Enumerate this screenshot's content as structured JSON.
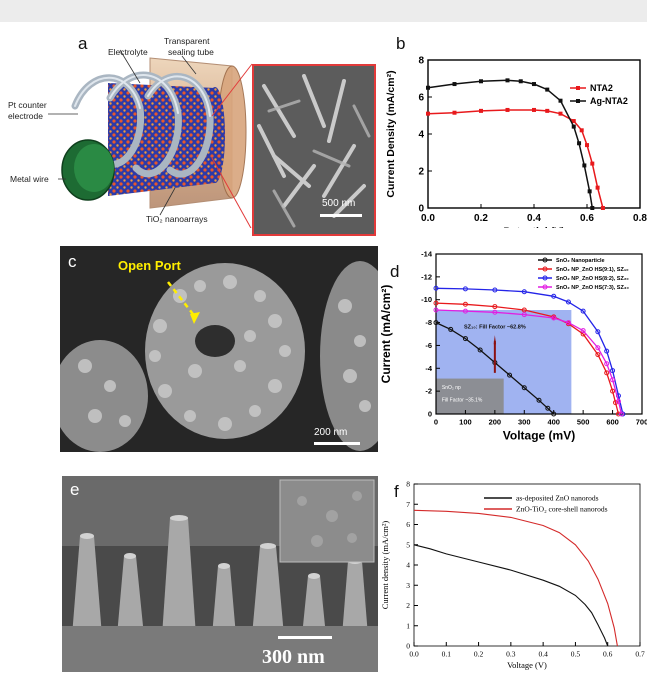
{
  "panels": {
    "a": {
      "label": "a",
      "annotations": {
        "electrolyte": "Electrolyte",
        "sealing1": "Transparent",
        "sealing2": "sealing tube",
        "pt1": "Pt counter",
        "pt2": "electrode",
        "wire": "Metal wire",
        "tio2": "TiO₂ nanoarrays",
        "scalebar": "500 nm"
      }
    },
    "b": {
      "label": "b"
    },
    "c": {
      "label": "c",
      "open_port": "Open Port",
      "scalebar": "200 nm"
    },
    "d": {
      "label": "d",
      "sz_note": "SZ₁₀: Fill Factor ~62.8%",
      "np_note1": "SnO₂ np",
      "np_note2": "Fill Factor ~35.1%"
    },
    "e": {
      "label": "e",
      "scalebar": "300 nm"
    },
    "f": {
      "label": "f"
    }
  },
  "chart_data": [
    {
      "id": "b",
      "type": "line",
      "xlabel": "Potential (V)",
      "ylabel": "Current Density (mA/cm²)",
      "xlim": [
        0.0,
        0.8
      ],
      "ylim": [
        0,
        8
      ],
      "xticks": [
        "0.0",
        "0.2",
        "0.4",
        "0.6",
        "0.8"
      ],
      "yticks": [
        "0",
        "2",
        "4",
        "6",
        "8"
      ],
      "legend": "top-right",
      "series": [
        {
          "name": "NTA2",
          "color": "#e8191c",
          "marker": "square",
          "x": [
            0,
            0.1,
            0.2,
            0.3,
            0.4,
            0.45,
            0.5,
            0.55,
            0.58,
            0.6,
            0.62,
            0.64,
            0.66
          ],
          "y": [
            5.1,
            5.15,
            5.25,
            5.3,
            5.3,
            5.25,
            5.1,
            4.7,
            4.2,
            3.4,
            2.4,
            1.1,
            0
          ]
        },
        {
          "name": "Ag-NTA2",
          "color": "#111111",
          "marker": "square",
          "x": [
            0,
            0.1,
            0.2,
            0.3,
            0.35,
            0.4,
            0.45,
            0.5,
            0.55,
            0.57,
            0.59,
            0.61,
            0.62
          ],
          "y": [
            6.5,
            6.7,
            6.85,
            6.9,
            6.85,
            6.7,
            6.4,
            5.8,
            4.4,
            3.5,
            2.3,
            0.9,
            0
          ]
        }
      ]
    },
    {
      "id": "d",
      "type": "line",
      "xlabel": "Voltage (mV)",
      "ylabel": "Current (mA/cm²)",
      "xlim": [
        0,
        700
      ],
      "ylim": [
        -14,
        0
      ],
      "y_reversed": true,
      "xticks": [
        "0",
        "100",
        "200",
        "300",
        "400",
        "500",
        "600",
        "700"
      ],
      "yticks": [
        "0",
        "-2",
        "-4",
        "-6",
        "-8",
        "-10",
        "-12",
        "-14"
      ],
      "legend": "top-right",
      "series": [
        {
          "name": "SnO₂ Nanoparticle",
          "color": "#111111",
          "x": [
            0,
            50,
            100,
            150,
            200,
            250,
            300,
            350,
            380,
            400
          ],
          "y": [
            -8.0,
            -7.4,
            -6.6,
            -5.6,
            -4.5,
            -3.4,
            -2.3,
            -1.2,
            -0.5,
            0
          ]
        },
        {
          "name": "SnO₂ NP_ZnO HS(9:1), SZ₁₀",
          "color": "#e8191c",
          "x": [
            0,
            100,
            200,
            300,
            400,
            450,
            500,
            550,
            580,
            600,
            610,
            620
          ],
          "y": [
            -9.7,
            -9.6,
            -9.4,
            -9.1,
            -8.5,
            -7.9,
            -7.0,
            -5.2,
            -3.6,
            -2.0,
            -1.0,
            0
          ]
        },
        {
          "name": "SnO₂ NP_ZnO HS(8:2), SZ₂₀",
          "color": "#2424e8",
          "x": [
            0,
            100,
            200,
            300,
            400,
            450,
            500,
            550,
            580,
            600,
            620,
            635
          ],
          "y": [
            -11.0,
            -10.95,
            -10.85,
            -10.7,
            -10.3,
            -9.8,
            -9.0,
            -7.2,
            -5.5,
            -3.8,
            -1.6,
            0
          ]
        },
        {
          "name": "SnO₂ NP_ZnO HS(7:3), SZ₃₀",
          "color": "#e21ee2",
          "x": [
            0,
            100,
            200,
            300,
            400,
            450,
            500,
            550,
            580,
            600,
            620,
            630
          ],
          "y": [
            -9.1,
            -9.0,
            -8.9,
            -8.7,
            -8.4,
            -8.0,
            -7.3,
            -5.8,
            -4.4,
            -3.0,
            -1.1,
            0
          ]
        }
      ]
    },
    {
      "id": "f",
      "type": "line",
      "xlabel": "Voltage (V)",
      "ylabel": "Current density (mA/cm²)",
      "xlim": [
        0.0,
        0.7
      ],
      "ylim": [
        0,
        8
      ],
      "xticks": [
        "0.0",
        "0.1",
        "0.2",
        "0.3",
        "0.4",
        "0.5",
        "0.6",
        "0.7"
      ],
      "yticks": [
        "0",
        "1",
        "2",
        "3",
        "4",
        "5",
        "6",
        "7",
        "8"
      ],
      "legend": "top-left",
      "series": [
        {
          "name": "as-deposited ZnO nanorods",
          "color": "#111111",
          "x": [
            0,
            0.05,
            0.1,
            0.2,
            0.3,
            0.4,
            0.45,
            0.5,
            0.53,
            0.55,
            0.57,
            0.59,
            0.6
          ],
          "y": [
            5.0,
            4.8,
            4.55,
            4.15,
            3.75,
            3.25,
            2.95,
            2.5,
            2.05,
            1.65,
            1.05,
            0.4,
            0
          ]
        },
        {
          "name": "ZnO-TiO₂ core-shell nanorods",
          "color": "#d42a2a",
          "x": [
            0,
            0.1,
            0.2,
            0.3,
            0.4,
            0.45,
            0.5,
            0.54,
            0.57,
            0.6,
            0.62,
            0.63
          ],
          "y": [
            6.7,
            6.65,
            6.55,
            6.35,
            5.95,
            5.6,
            5.0,
            4.2,
            3.3,
            2.1,
            0.9,
            0
          ]
        }
      ]
    }
  ]
}
